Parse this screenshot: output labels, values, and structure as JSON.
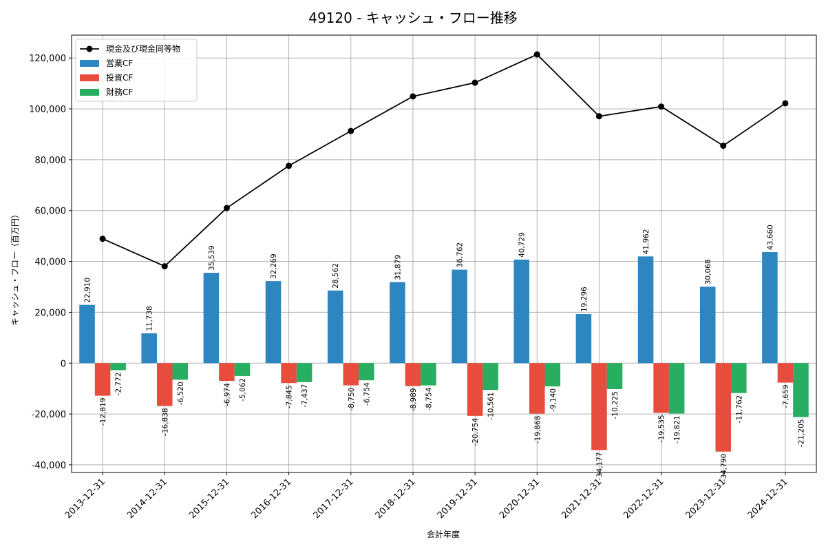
{
  "chart_data": {
    "type": "bar",
    "title": "49120 - キャッシュ・フロー推移",
    "xlabel": "会計年度",
    "ylabel": "キャッシュ・フロー（百万円）",
    "ylim": [
      -43000,
      129000
    ],
    "yticks": [
      -40000,
      -20000,
      0,
      20000,
      40000,
      60000,
      80000,
      100000,
      120000
    ],
    "ytick_labels": [
      "-40,000",
      "-20,000",
      "0",
      "20,000",
      "40,000",
      "60,000",
      "80,000",
      "100,000",
      "120,000"
    ],
    "grid": true,
    "legend_position": "top-left",
    "categories": [
      "2013-12-31",
      "2014-12-31",
      "2015-12-31",
      "2016-12-31",
      "2017-12-31",
      "2018-12-31",
      "2019-12-31",
      "2020-12-31",
      "2021-12-31",
      "2022-12-31",
      "2023-12-31",
      "2024-12-31"
    ],
    "series": [
      {
        "name": "営業CF",
        "kind": "bar",
        "color": "#2e86c1",
        "values": [
          22910,
          11738,
          35539,
          32269,
          28562,
          31879,
          36762,
          40729,
          19296,
          41962,
          30068,
          43660
        ],
        "labels": [
          "22,910",
          "11,738",
          "35,539",
          "32,269",
          "28,562",
          "31,879",
          "36,762",
          "40,729",
          "19,296",
          "41,962",
          "30,068",
          "43,660"
        ]
      },
      {
        "name": "投資CF",
        "kind": "bar",
        "color": "#e74c3c",
        "values": [
          -12819,
          -16838,
          -6974,
          -7845,
          -8750,
          -8989,
          -20754,
          -19868,
          -34177,
          -19535,
          -34790,
          -7659
        ],
        "labels": [
          "-12,819",
          "-16,838",
          "-6,974",
          "-7,845",
          "-8,750",
          "-8,989",
          "-20,754",
          "-19,868",
          "-34,177",
          "-19,535",
          "-34,790",
          "-7,659"
        ]
      },
      {
        "name": "財務CF",
        "kind": "bar",
        "color": "#27ae60",
        "values": [
          -2772,
          -6520,
          -5062,
          -7437,
          -6754,
          -8754,
          -10561,
          -9140,
          -10225,
          -19821,
          -11762,
          -21205
        ],
        "labels": [
          "-2,772",
          "-6,520",
          "-5,062",
          "-7,437",
          "-6,754",
          "-8,754",
          "-10,561",
          "-9,140",
          "-10,225",
          "-19,821",
          "-11,762",
          "-21,205"
        ]
      },
      {
        "name": "現金及び現金同等物",
        "kind": "line",
        "color": "#000000",
        "values": [
          48900,
          38100,
          61000,
          77600,
          91300,
          104900,
          110300,
          121400,
          97100,
          100900,
          85500,
          102200
        ]
      }
    ]
  }
}
